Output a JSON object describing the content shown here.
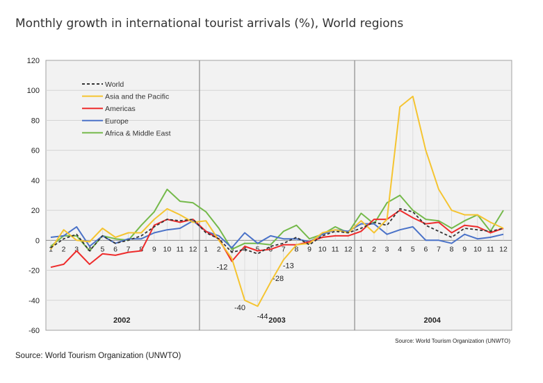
{
  "title": "Monthly growth in international tourist arrivals (%), World regions",
  "footer_source": "Source: World Tourism Organization (UNWTO)",
  "chart_data": {
    "type": "line",
    "title": "Monthly growth in international tourist arrivals (%), World regions",
    "source_note": "Source: World Tourism Organization (UNWTO)",
    "ylim": [
      -60,
      120
    ],
    "yticks": [
      "120",
      "100",
      "80",
      "60",
      "40",
      "20",
      "0",
      "-20",
      "-40",
      "-60"
    ],
    "years": [
      "2002",
      "2003",
      "2004"
    ],
    "months": [
      "1",
      "2",
      "3",
      "4",
      "5",
      "6",
      "7",
      "8",
      "9",
      "10",
      "11",
      "12"
    ],
    "grid": true,
    "legend_position": "top-left",
    "series": [
      {
        "name": "World",
        "color": "#333333",
        "dashed": true,
        "values": [
          -5,
          1,
          4,
          -7,
          3,
          -2,
          0,
          3,
          9,
          14,
          13,
          14,
          5,
          1,
          -8,
          -6,
          -9,
          -4,
          -2,
          2,
          -3,
          3,
          6,
          5,
          8,
          12,
          10,
          21,
          19,
          10,
          6,
          2,
          8,
          7,
          6,
          8
        ]
      },
      {
        "name": "Asia and the Pacific",
        "color": "#F5C430",
        "dashed": false,
        "values": [
          -6,
          7,
          0,
          -1,
          8,
          2,
          5,
          5,
          14,
          21,
          17,
          12,
          13,
          0,
          -12,
          -40,
          -44,
          -28,
          -13,
          -3,
          -2,
          5,
          7,
          5,
          13,
          5,
          14,
          89,
          96,
          60,
          34,
          20,
          17,
          17,
          12,
          8
        ]
      },
      {
        "name": "Americas",
        "color": "#EE2B2B",
        "dashed": false,
        "values": [
          -18,
          -16,
          -7,
          -16,
          -9,
          -10,
          -8,
          -7,
          10,
          14,
          12,
          14,
          6,
          1,
          -14,
          -4,
          -7,
          -6,
          -3,
          -3,
          -1,
          2,
          3,
          3,
          6,
          14,
          14,
          20,
          15,
          11,
          12,
          5,
          10,
          9,
          5,
          8
        ]
      },
      {
        "name": "Europe",
        "color": "#4A72C8",
        "dashed": false,
        "values": [
          2,
          3,
          9,
          -4,
          3,
          -2,
          1,
          1,
          5,
          7,
          8,
          13,
          6,
          3,
          -5,
          5,
          -2,
          3,
          1,
          1,
          -1,
          4,
          7,
          6,
          11,
          11,
          4,
          7,
          9,
          0,
          0,
          -2,
          4,
          1,
          2,
          4
        ]
      },
      {
        "name": "Africa & Middle East",
        "color": "#74B94A",
        "dashed": false,
        "values": [
          -4,
          3,
          3,
          -7,
          3,
          1,
          0,
          10,
          19,
          34,
          26,
          25,
          19,
          8,
          -6,
          -2,
          -2,
          -3,
          6,
          10,
          1,
          4,
          9,
          5,
          18,
          11,
          25,
          30,
          20,
          14,
          13,
          8,
          13,
          17,
          6,
          20
        ]
      }
    ],
    "annotations": [
      "-12",
      "-40",
      "-44",
      "-28",
      "-13"
    ]
  }
}
